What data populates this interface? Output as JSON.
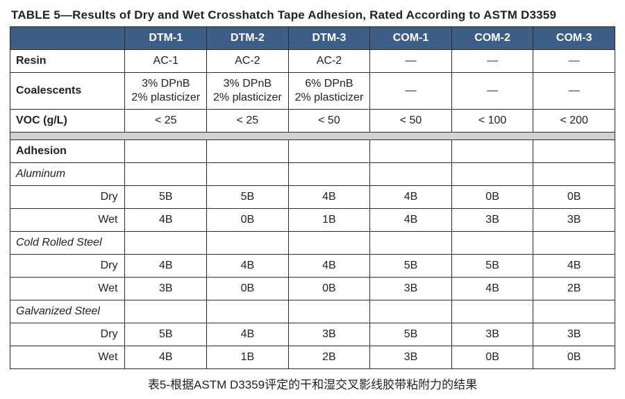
{
  "title": "TABLE 5—Results of Dry and Wet Crosshatch Tape Adhesion, Rated According to ASTM D3359",
  "caption": "表5-根据ASTM D3359评定的干和湿交叉影线胶带粘附力的结果",
  "colors": {
    "header_bg": "#3f5e87",
    "header_fg": "#ffffff",
    "border": "#2b2b2b",
    "spacer_bg": "#d2d2d2",
    "page_bg": "#ffffff"
  },
  "columns": [
    "DTM-1",
    "DTM-2",
    "DTM-3",
    "COM-1",
    "COM-2",
    "COM-3"
  ],
  "properties": {
    "resin": {
      "label": "Resin",
      "values": [
        "AC-1",
        "AC-2",
        "AC-2",
        "—",
        "—",
        "—"
      ]
    },
    "coalescents": {
      "label": "Coalescents",
      "values": [
        {
          "line1": "3% DPnB",
          "line2": "2% plasticizer"
        },
        {
          "line1": "3% DPnB",
          "line2": "2% plasticizer"
        },
        {
          "line1": "6% DPnB",
          "line2": "2% plasticizer"
        },
        {
          "line1": "—",
          "line2": ""
        },
        {
          "line1": "—",
          "line2": ""
        },
        {
          "line1": "—",
          "line2": ""
        }
      ]
    },
    "voc": {
      "label": "VOC (g/L)",
      "values": [
        "< 25",
        "< 25",
        "< 50",
        "< 50",
        "< 100",
        "< 200"
      ]
    }
  },
  "adhesion": {
    "label": "Adhesion",
    "substrates": [
      {
        "name": "Aluminum",
        "dry": {
          "label": "Dry",
          "values": [
            "5B",
            "5B",
            "4B",
            "4B",
            "0B",
            "0B"
          ]
        },
        "wet": {
          "label": "Wet",
          "values": [
            "4B",
            "0B",
            "1B",
            "4B",
            "3B",
            "3B"
          ]
        }
      },
      {
        "name": "Cold Rolled Steel",
        "dry": {
          "label": "Dry",
          "values": [
            "4B",
            "4B",
            "4B",
            "5B",
            "5B",
            "4B"
          ]
        },
        "wet": {
          "label": "Wet",
          "values": [
            "3B",
            "0B",
            "0B",
            "3B",
            "4B",
            "2B"
          ]
        }
      },
      {
        "name": "Galvanized Steel",
        "dry": {
          "label": "Dry",
          "values": [
            "5B",
            "4B",
            "3B",
            "5B",
            "3B",
            "3B"
          ]
        },
        "wet": {
          "label": "Wet",
          "values": [
            "4B",
            "1B",
            "2B",
            "3B",
            "0B",
            "0B"
          ]
        }
      }
    ]
  }
}
